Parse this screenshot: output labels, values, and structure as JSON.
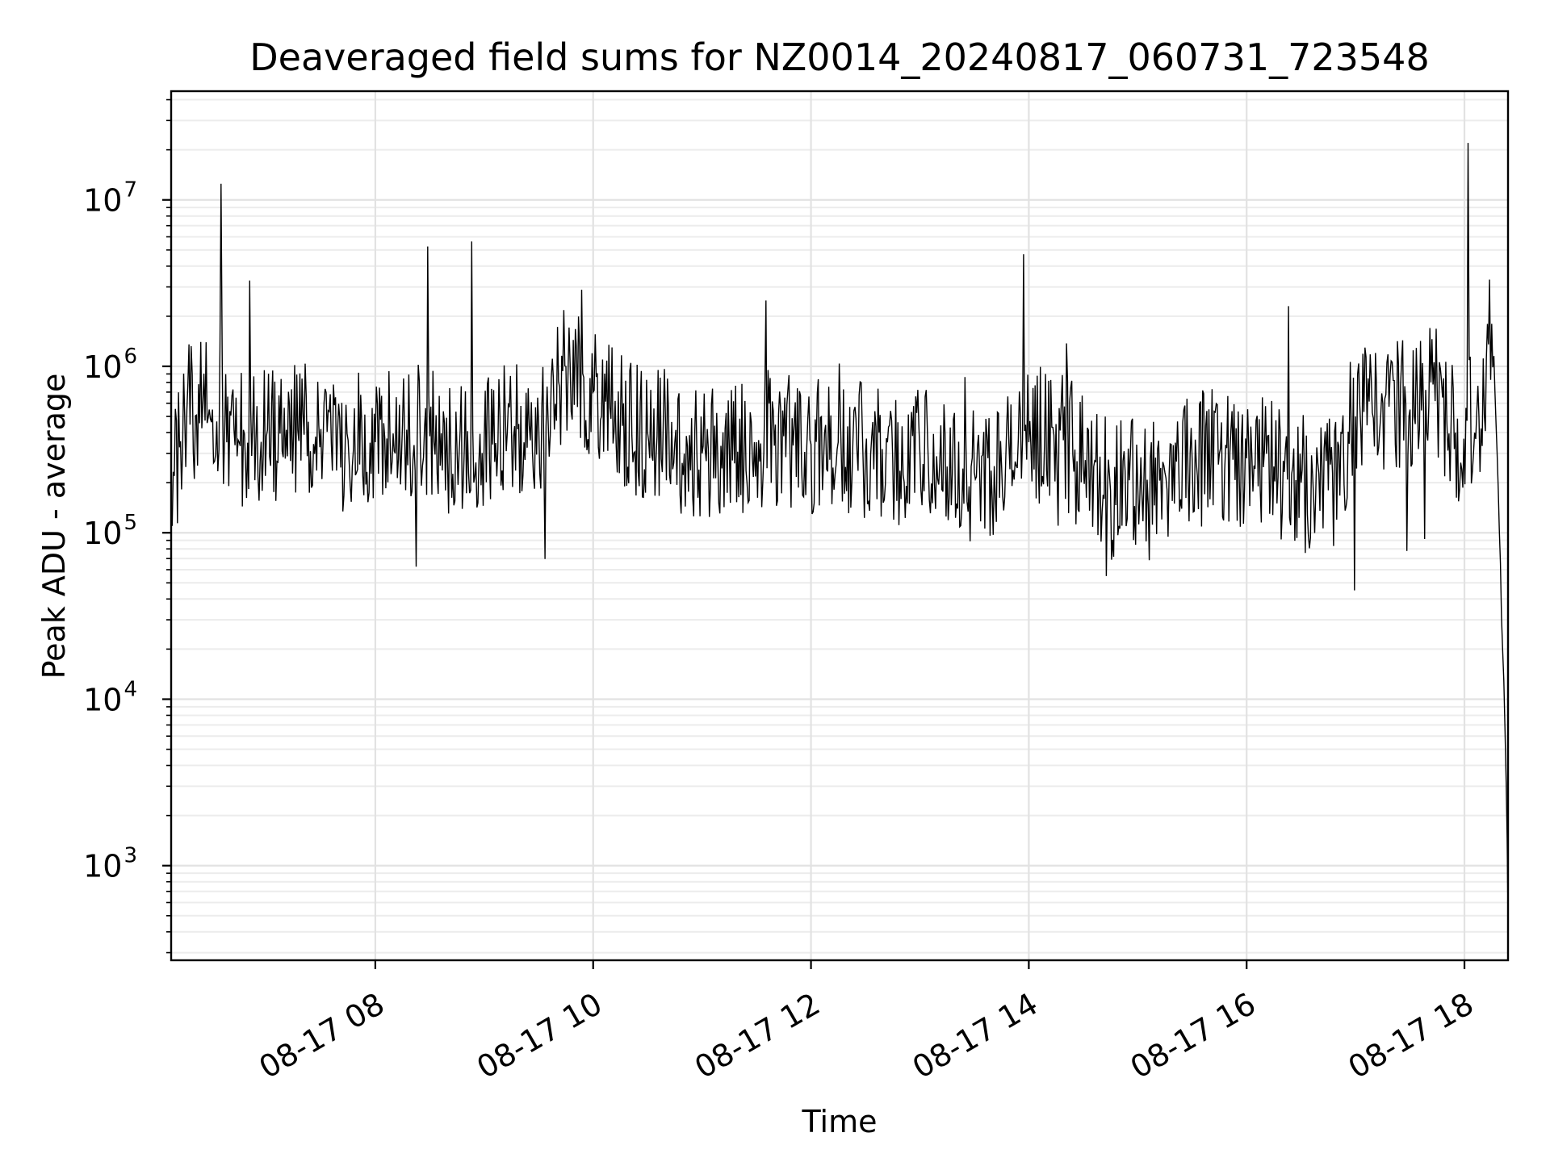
{
  "chart_data": {
    "type": "line",
    "title": "Deaveraged field sums for NZ0014_20240817_060731_723548",
    "xlabel": "Time",
    "ylabel": "Peak ADU - average",
    "yscale": "log",
    "ylim": [
      270,
      45000000
    ],
    "xlim": [
      "2024-08-17 06:07:31",
      "2024-08-17 18:24:00"
    ],
    "grid": true,
    "grid_minor": true,
    "x_ticks": [
      {
        "at": "2024-08-17 08:00",
        "label": "08-17 08"
      },
      {
        "at": "2024-08-17 10:00",
        "label": "08-17 10"
      },
      {
        "at": "2024-08-17 12:00",
        "label": "08-17 12"
      },
      {
        "at": "2024-08-17 14:00",
        "label": "08-17 14"
      },
      {
        "at": "2024-08-17 16:00",
        "label": "08-17 16"
      },
      {
        "at": "2024-08-17 18:00",
        "label": "08-17 18"
      }
    ],
    "y_ticks": [
      {
        "value": 1000,
        "base": "10",
        "exp": "3"
      },
      {
        "value": 10000,
        "base": "10",
        "exp": "4"
      },
      {
        "value": 100000,
        "base": "10",
        "exp": "5"
      },
      {
        "value": 1000000,
        "base": "10",
        "exp": "6"
      },
      {
        "value": 10000000,
        "base": "10",
        "exp": "7"
      }
    ],
    "series": [
      {
        "color": "#000000",
        "x": [
          "2024-08-17 06:07:31",
          "2024-08-17 06:15",
          "2024-08-17 06:25",
          "2024-08-17 06:35",
          "2024-08-17 06:37",
          "2024-08-17 06:45",
          "2024-08-17 07:00",
          "2024-08-17 07:15",
          "2024-08-17 07:30",
          "2024-08-17 07:45",
          "2024-08-17 08:00",
          "2024-08-17 08:15",
          "2024-08-17 08:30",
          "2024-08-17 08:45",
          "2024-08-17 09:00",
          "2024-08-17 09:15",
          "2024-08-17 09:30",
          "2024-08-17 09:45",
          "2024-08-17 10:00",
          "2024-08-17 10:15",
          "2024-08-17 10:30",
          "2024-08-17 10:45",
          "2024-08-17 11:00",
          "2024-08-17 11:15",
          "2024-08-17 11:30",
          "2024-08-17 11:45",
          "2024-08-17 12:00",
          "2024-08-17 12:15",
          "2024-08-17 12:30",
          "2024-08-17 12:45",
          "2024-08-17 13:00",
          "2024-08-17 13:15",
          "2024-08-17 13:30",
          "2024-08-17 13:45",
          "2024-08-17 14:00",
          "2024-08-17 14:15",
          "2024-08-17 14:30",
          "2024-08-17 14:45",
          "2024-08-17 15:00",
          "2024-08-17 15:15",
          "2024-08-17 15:30",
          "2024-08-17 15:45",
          "2024-08-17 16:00",
          "2024-08-17 16:15",
          "2024-08-17 16:30",
          "2024-08-17 16:45",
          "2024-08-17 17:00",
          "2024-08-17 17:15",
          "2024-08-17 17:30",
          "2024-08-17 17:45",
          "2024-08-17 17:55",
          "2024-08-17 18:02",
          "2024-08-17 18:08",
          "2024-08-17 18:15",
          "2024-08-17 18:18",
          "2024-08-17 18:21",
          "2024-08-17 18:23",
          "2024-08-17 18:24"
        ],
        "y": [
          150000,
          500000,
          600000,
          12500000,
          400000,
          350000,
          380000,
          400000,
          420000,
          360000,
          350000,
          450000,
          380000,
          320000,
          360000,
          400000,
          450000,
          1000000,
          700000,
          450000,
          400000,
          350000,
          300000,
          320000,
          350000,
          380000,
          340000,
          350000,
          300000,
          280000,
          300000,
          250000,
          230000,
          250000,
          350000,
          450000,
          250000,
          180000,
          200000,
          230000,
          270000,
          300000,
          280000,
          250000,
          200000,
          180000,
          500000,
          600000,
          550000,
          700000,
          400000,
          22000000,
          500000,
          1800000,
          300000,
          20000,
          3000,
          500
        ]
      }
    ]
  }
}
